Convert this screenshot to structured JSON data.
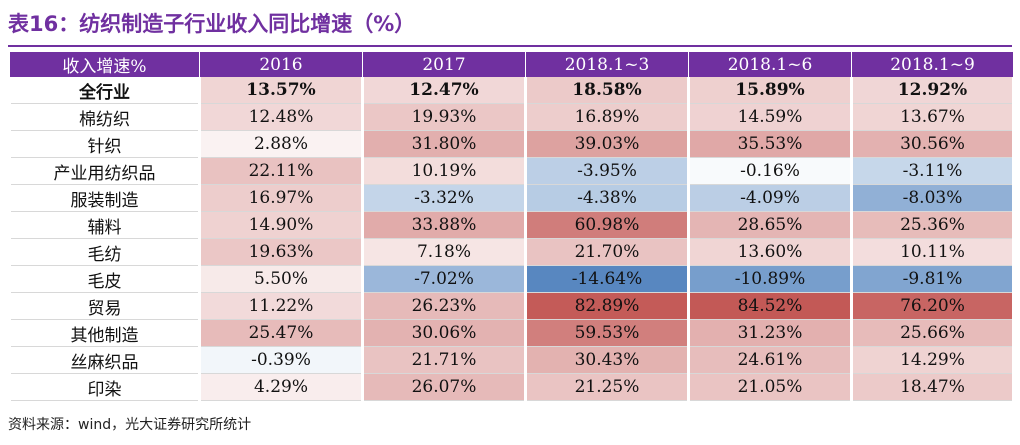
{
  "title": "表16：纺织制造子行业收入同比增速（%）",
  "table": {
    "headers": [
      "收入增速%",
      "2016",
      "2017",
      "2018.1~3",
      "2018.1~6",
      "2018.1~9"
    ],
    "rows": [
      {
        "label": "全行业",
        "bold": true,
        "values": [
          "13.57%",
          "12.47%",
          "18.58%",
          "15.89%",
          "12.92%"
        ],
        "nums": [
          13.57,
          12.47,
          18.58,
          15.89,
          12.92
        ]
      },
      {
        "label": "棉纺织",
        "values": [
          "12.48%",
          "19.93%",
          "16.89%",
          "14.59%",
          "13.67%"
        ],
        "nums": [
          12.48,
          19.93,
          16.89,
          14.59,
          13.67
        ]
      },
      {
        "label": "针织",
        "values": [
          "2.88%",
          "31.80%",
          "39.03%",
          "35.53%",
          "30.56%"
        ],
        "nums": [
          2.88,
          31.8,
          39.03,
          35.53,
          30.56
        ]
      },
      {
        "label": "产业用纺织品",
        "values": [
          "22.11%",
          "10.19%",
          "-3.95%",
          "-0.16%",
          "-3.11%"
        ],
        "nums": [
          22.11,
          10.19,
          -3.95,
          -0.16,
          -3.11
        ]
      },
      {
        "label": "服装制造",
        "values": [
          "16.97%",
          "-3.32%",
          "-4.38%",
          "-4.09%",
          "-8.03%"
        ],
        "nums": [
          16.97,
          -3.32,
          -4.38,
          -4.09,
          -8.03
        ]
      },
      {
        "label": "辅料",
        "values": [
          "14.90%",
          "33.88%",
          "60.98%",
          "28.65%",
          "25.36%"
        ],
        "nums": [
          14.9,
          33.88,
          60.98,
          28.65,
          25.36
        ]
      },
      {
        "label": "毛纺",
        "values": [
          "19.63%",
          "7.18%",
          "21.70%",
          "13.60%",
          "10.11%"
        ],
        "nums": [
          19.63,
          7.18,
          21.7,
          13.6,
          10.11
        ]
      },
      {
        "label": "毛皮",
        "values": [
          "5.50%",
          "-7.02%",
          "-14.64%",
          "-10.89%",
          "-9.81%"
        ],
        "nums": [
          5.5,
          -7.02,
          -14.64,
          -10.89,
          -9.81
        ]
      },
      {
        "label": "贸易",
        "values": [
          "11.22%",
          "26.23%",
          "82.89%",
          "84.52%",
          "76.20%"
        ],
        "nums": [
          11.22,
          26.23,
          82.89,
          84.52,
          76.2
        ]
      },
      {
        "label": "其他制造",
        "values": [
          "25.47%",
          "30.06%",
          "59.53%",
          "31.23%",
          "25.66%"
        ],
        "nums": [
          25.47,
          30.06,
          59.53,
          31.23,
          25.66
        ]
      },
      {
        "label": "丝麻织品",
        "values": [
          "-0.39%",
          "21.71%",
          "30.43%",
          "24.61%",
          "14.29%"
        ],
        "nums": [
          -0.39,
          21.71,
          30.43,
          24.61,
          14.29
        ]
      },
      {
        "label": "印染",
        "values": [
          "4.29%",
          "26.07%",
          "21.25%",
          "21.05%",
          "18.47%"
        ],
        "nums": [
          4.29,
          26.07,
          21.25,
          21.05,
          18.47
        ]
      }
    ]
  },
  "heatmap_colors": {
    "high": "#c0504d",
    "mid": "#ffffff",
    "low": "#4f81bd"
  },
  "source": "资料来源：wind，光大证券研究所统计"
}
